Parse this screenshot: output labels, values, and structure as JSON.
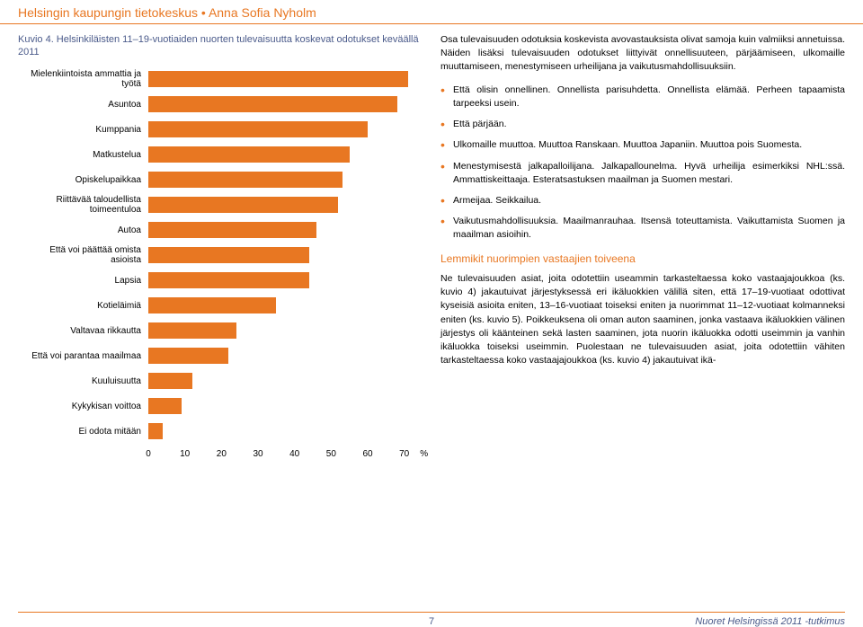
{
  "header": {
    "text_left": "Helsingin kaupungin tietokeskus",
    "bullet": "•",
    "text_right": "Anna Sofia Nyholm"
  },
  "chart": {
    "title_prefix": "Kuvio 4.",
    "title_rest": " Helsinkiläisten 11–19-vuotiaiden nuorten tulevaisuutta koskevat odotukset keväällä 2011",
    "type": "bar",
    "bar_color": "#e87722",
    "background": "#ffffff",
    "label_fontsize": 10,
    "xmax": 75,
    "xtick_step": 10,
    "xunit": "%",
    "items": [
      {
        "label": "Mielenkiintoista ammattia ja työtä",
        "value": 71
      },
      {
        "label": "Asuntoa",
        "value": 68
      },
      {
        "label": "Kumppania",
        "value": 60
      },
      {
        "label": "Matkustelua",
        "value": 55
      },
      {
        "label": "Opiskelupaikkaa",
        "value": 53
      },
      {
        "label": "Riittävää taloudellista toimeentuloa",
        "value": 52
      },
      {
        "label": "Autoa",
        "value": 46
      },
      {
        "label": "Että voi päättää omista asioista",
        "value": 44
      },
      {
        "label": "Lapsia",
        "value": 44
      },
      {
        "label": "Kotieläimiä",
        "value": 35
      },
      {
        "label": "Valtavaa rikkautta",
        "value": 24
      },
      {
        "label": "Että voi parantaa maailmaa",
        "value": 22
      },
      {
        "label": "Kuuluisuutta",
        "value": 12
      },
      {
        "label": "Kykykisan voittoa",
        "value": 9
      },
      {
        "label": "Ei odota mitään",
        "value": 4
      }
    ]
  },
  "body": {
    "intro": "Osa tulevaisuuden odotuksia koskevista avovastauksista olivat samoja kuin valmiiksi annetuissa. Näiden lisäksi tulevaisuuden odotukset liittyivät onnellisuuteen, pärjäämiseen, ulkomaille muuttamiseen, menestymiseen urheilijana ja vaikutusmahdollisuuksiin.",
    "bullets": [
      "Että olisin onnellinen. Onnellista parisuhdetta. Onnellista elämää. Perheen tapaamista tarpeeksi usein.",
      "Että pärjään.",
      "Ulkomaille muuttoa. Muuttoa Ranskaan. Muuttoa Japaniin. Muuttoa pois Suomesta.",
      "Menestymisestä jalkapalloilijana. Jalkapallounelma. Hyvä urheilija esimerkiksi NHL:ssä. Ammattiskeittaaja. Esteratsastuksen maailman ja Suomen mestari.",
      "Armeijaa. Seikkailua.",
      "Vaikutusmahdollisuuksia. Maailmanrauhaa. Itsensä toteuttamista. Vaikuttamista Suomen ja maailman asioihin."
    ],
    "section_title": "Lemmikit nuorimpien vastaajien toiveena",
    "para2": "Ne tulevaisuuden asiat, joita odotettiin useammin tarkasteltaessa koko vastaajajoukkoa (ks. kuvio 4) jakautuivat järjestyksessä eri ikäluokkien välillä siten, että 17–19-vuotiaat odottivat kyseisiä asioita eniten, 13–16-vuotiaat toiseksi eniten ja nuorimmat 11–12-vuotiaat kolmanneksi eniten (ks. kuvio 5). Poikkeuksena oli oman auton saaminen, jonka vastaava ikäluokkien välinen järjestys oli käänteinen sekä lasten saaminen, jota nuorin ikäluokka odotti useimmin ja vanhin ikäluokka toiseksi useimmin. Puolestaan ne tulevaisuuden asiat, joita odotettiin vähiten tarkasteltaessa koko vastaajajoukkoa (ks. kuvio 4) jakautuivat ikä-"
  },
  "footer": {
    "page": "7",
    "right": "Nuoret Helsingissä 2011 -tutkimus"
  }
}
